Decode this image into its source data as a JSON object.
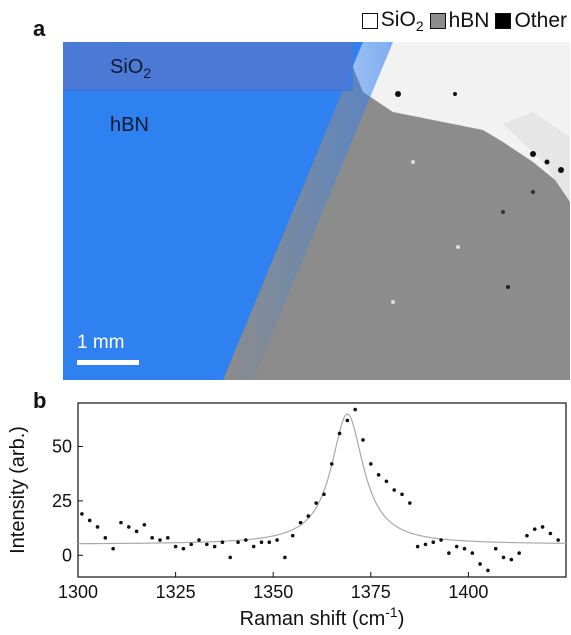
{
  "panel_a": {
    "letter": "a",
    "legend": [
      {
        "label": "SiO",
        "sub": "2",
        "color": "#ffffff"
      },
      {
        "label": "hBN",
        "sub": "",
        "color": "#8c8c8c"
      },
      {
        "label": "Other",
        "sub": "",
        "color": "#000000"
      }
    ],
    "region_labels": {
      "sio2": {
        "text": "SiO",
        "sub": "2"
      },
      "hbn": {
        "text": "hBN"
      }
    },
    "scale_bar_label": "1 mm",
    "colors": {
      "hbn_optical": "#2f80f0",
      "sio2_optical": "#4d79d6",
      "hbn_map": "#8c8c8c",
      "sio2_map": "#ffffff"
    }
  },
  "panel_b": {
    "letter": "b"
  },
  "chart_data": {
    "type": "scatter",
    "title": "",
    "xlabel": "Raman shift (cm",
    "xlabel_sup": "-1",
    "xlabel_suffix": ")",
    "ylabel": "Intensity (arb.)",
    "xlim": [
      1300,
      1425
    ],
    "ylim": [
      -10,
      70
    ],
    "xticks": [
      1300,
      1325,
      1350,
      1375,
      1400
    ],
    "yticks": [
      0,
      25,
      50
    ],
    "series": [
      {
        "kind": "points",
        "color": "#111111",
        "x": [
          1301,
          1303,
          1305,
          1307,
          1309,
          1311,
          1313,
          1315,
          1317,
          1319,
          1321,
          1323,
          1325,
          1327,
          1329,
          1331,
          1333,
          1335,
          1337,
          1339,
          1341,
          1343,
          1345,
          1347,
          1349,
          1351,
          1353,
          1355,
          1357,
          1359,
          1361,
          1363,
          1365,
          1367,
          1369,
          1371,
          1373,
          1375,
          1377,
          1379,
          1381,
          1383,
          1385,
          1387,
          1389,
          1391,
          1393,
          1395,
          1397,
          1399,
          1401,
          1403,
          1405,
          1407,
          1409,
          1411,
          1413,
          1415,
          1417,
          1419,
          1421,
          1423
        ],
        "y": [
          19,
          16,
          13,
          8,
          3,
          15,
          13,
          11,
          14,
          8,
          7,
          8,
          4,
          3,
          5,
          7,
          5,
          4,
          6,
          -1,
          6,
          7,
          4,
          6,
          6,
          7,
          -1,
          9,
          15,
          18,
          24,
          28,
          42,
          56,
          62,
          67,
          53,
          42,
          37,
          34,
          30,
          28,
          24,
          4,
          5,
          6,
          7,
          1,
          4,
          3,
          1,
          -4,
          -7,
          3,
          -1,
          -2,
          1,
          9,
          12,
          13,
          10,
          7
        ]
      },
      {
        "kind": "fit",
        "color": "#a9a9a9",
        "model": "lorentzian",
        "baseline": 5,
        "amplitude": 60,
        "center": 1369,
        "fwhm": 10
      }
    ],
    "grid": false
  }
}
